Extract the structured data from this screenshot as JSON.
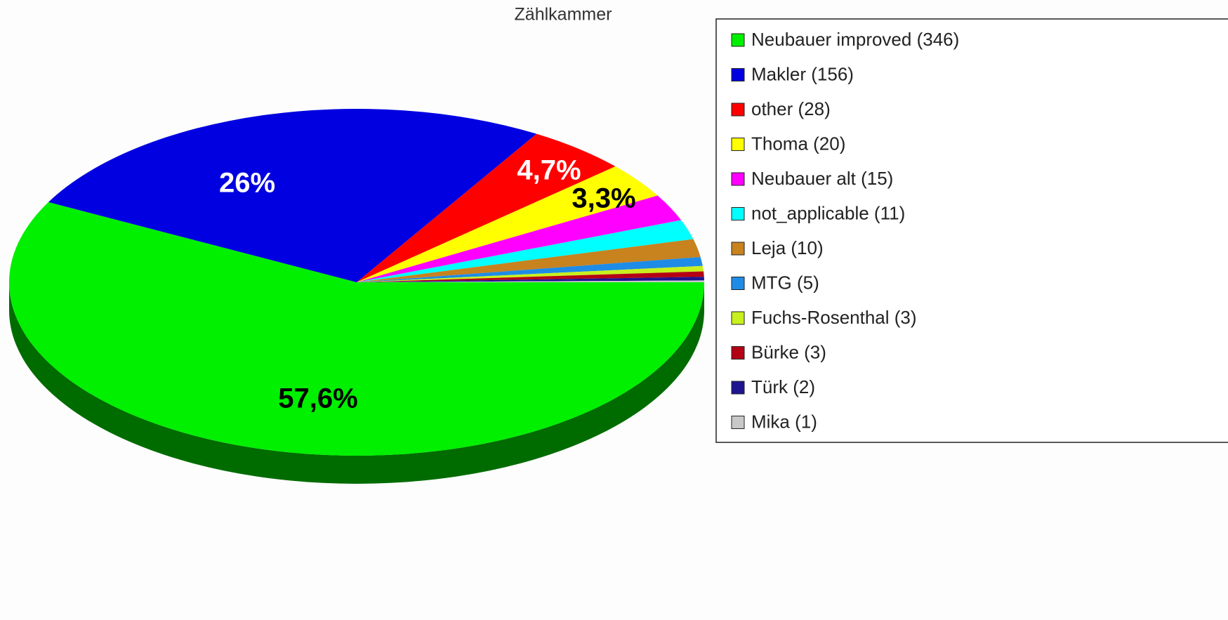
{
  "chart_data": {
    "type": "pie",
    "title": "Zählkammer",
    "categories": [
      "Neubauer improved (346)",
      "Makler (156)",
      "other (28)",
      "Thoma (20)",
      "Neubauer alt (15)",
      "not_applicable (11)",
      "Leja (10)",
      "MTG (5)",
      "Fuchs-Rosenthal (3)",
      "Bürke (3)",
      "Türk (2)",
      "Mika (1)"
    ],
    "values": [
      57.6,
      26,
      4.7,
      3.3,
      2.5,
      1.83,
      1.67,
      0.83,
      0.5,
      0.5,
      0.33,
      0.17
    ],
    "value_labels": [
      "57,6%",
      "26%",
      "4,7%",
      "3,3%",
      null,
      null,
      null,
      null,
      null,
      null,
      null,
      null
    ],
    "colors": [
      "#00f000",
      "#0000e0",
      "#ff0000",
      "#ffff00",
      "#ff00ff",
      "#00ffff",
      "#c8821e",
      "#1e8ce6",
      "#c8f01e",
      "#b40014",
      "#1e1490",
      "#c8c8c8"
    ],
    "legend": "right"
  }
}
